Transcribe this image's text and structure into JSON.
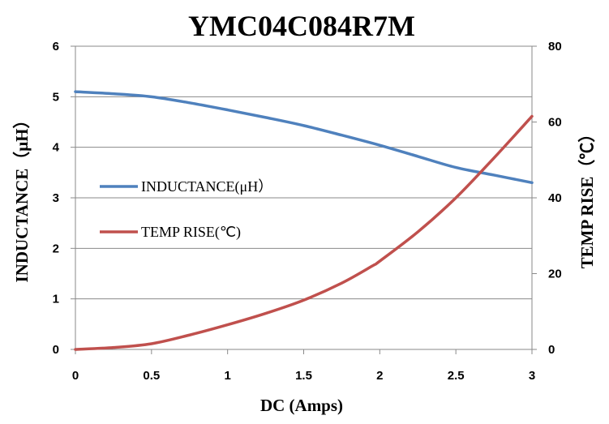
{
  "chart_data": {
    "type": "line",
    "title": "YMC04C084R7M",
    "xlabel": "DC (Amps)",
    "ylabel_left": "INDUCTANCE（μH）",
    "ylabel_right": "TEMP RISE（℃）",
    "xlim": [
      0,
      3
    ],
    "ylim_left": [
      0,
      6
    ],
    "ylim_right": [
      0,
      80
    ],
    "x_ticks": [
      "0",
      "0.5",
      "1",
      "1.5",
      "2",
      "2.5",
      "3"
    ],
    "y_left_ticks": [
      "0",
      "1",
      "2",
      "3",
      "4",
      "5",
      "6"
    ],
    "y_right_ticks": [
      "0",
      "20",
      "40",
      "60",
      "80"
    ],
    "grid": "horizontal",
    "legend_position": "left-middle",
    "series": [
      {
        "name": "INDUCTANCE(μH）",
        "axis": "left",
        "color": "#4f81bd",
        "points": [
          [
            0,
            5.1
          ],
          [
            0.25,
            5.06
          ],
          [
            0.5,
            5.0
          ],
          [
            0.75,
            4.88
          ],
          [
            1,
            4.74
          ],
          [
            1.25,
            4.59
          ],
          [
            1.5,
            4.43
          ],
          [
            1.75,
            4.24
          ],
          [
            2,
            4.04
          ],
          [
            2.25,
            3.82
          ],
          [
            2.5,
            3.6
          ],
          [
            2.75,
            3.45
          ],
          [
            3,
            3.3
          ]
        ]
      },
      {
        "name": "TEMP RISE(℃)",
        "axis": "right",
        "color": "#c0504d",
        "points": [
          [
            0,
            0
          ],
          [
            0.25,
            0.5
          ],
          [
            0.5,
            1.5
          ],
          [
            0.75,
            3.8
          ],
          [
            1,
            6.5
          ],
          [
            1.25,
            9.5
          ],
          [
            1.5,
            13
          ],
          [
            1.75,
            17.5
          ],
          [
            1.95,
            22
          ],
          [
            2,
            23.3
          ],
          [
            2.25,
            31
          ],
          [
            2.5,
            40
          ],
          [
            2.75,
            50.5
          ],
          [
            3,
            61.5
          ]
        ]
      }
    ]
  }
}
